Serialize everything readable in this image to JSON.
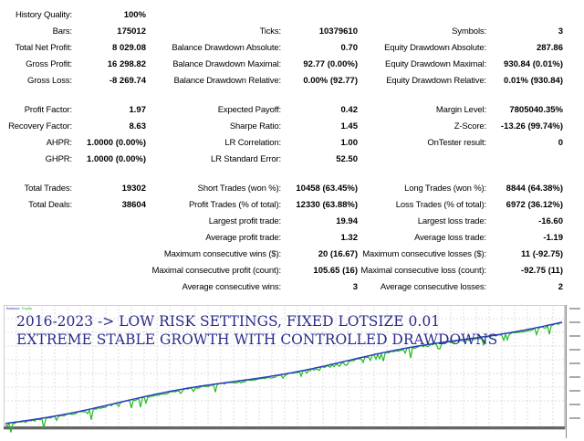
{
  "rows": [
    {
      "y": 17,
      "cells": [
        [
          "History Quality:",
          "100%"
        ],
        null,
        null
      ]
    },
    {
      "y": 35,
      "cells": [
        [
          "Bars:",
          "175012"
        ],
        [
          "Ticks:",
          "10379610"
        ],
        [
          "Symbols:",
          "3"
        ]
      ]
    },
    {
      "y": 53,
      "cells": [
        [
          "Total Net Profit:",
          "8 029.08"
        ],
        [
          "Balance Drawdown Absolute:",
          "0.70"
        ],
        [
          "Equity Drawdown Absolute:",
          "287.86"
        ]
      ]
    },
    {
      "y": 71,
      "cells": [
        [
          "Gross Profit:",
          "16 298.82"
        ],
        [
          "Balance Drawdown Maximal:",
          "92.77 (0.00%)"
        ],
        [
          "Equity Drawdown Maximal:",
          "930.84 (0.01%)"
        ]
      ]
    },
    {
      "y": 89,
      "cells": [
        [
          "Gross Loss:",
          "-8 269.74"
        ],
        [
          "Balance Drawdown Relative:",
          "0.00% (92.77)"
        ],
        [
          "Equity Drawdown Relative:",
          "0.01% (930.84)"
        ]
      ]
    },
    {
      "y": 121,
      "cells": [
        [
          "Profit Factor:",
          "1.97"
        ],
        [
          "Expected Payoff:",
          "0.42"
        ],
        [
          "Margin Level:",
          "7805040.35%"
        ]
      ]
    },
    {
      "y": 139,
      "cells": [
        [
          "Recovery Factor:",
          "8.63"
        ],
        [
          "Sharpe Ratio:",
          "1.45"
        ],
        [
          "Z-Score:",
          "-13.26 (99.74%)"
        ]
      ]
    },
    {
      "y": 157,
      "cells": [
        [
          "AHPR:",
          "1.0000 (0.00%)"
        ],
        [
          "LR Correlation:",
          "1.00"
        ],
        [
          "OnTester result:",
          "0"
        ]
      ]
    },
    {
      "y": 175,
      "cells": [
        [
          "GHPR:",
          "1.0000 (0.00%)"
        ],
        [
          "LR Standard Error:",
          "52.50"
        ],
        null
      ]
    },
    {
      "y": 207,
      "cells": [
        [
          "Total Trades:",
          "19302"
        ],
        [
          "Short Trades (won %):",
          "10458 (63.45%)"
        ],
        [
          "Long Trades (won %):",
          "8844 (64.38%)"
        ]
      ]
    },
    {
      "y": 225,
      "cells": [
        [
          "Total Deals:",
          "38604"
        ],
        [
          "Profit Trades (% of total):",
          "12330 (63.88%)"
        ],
        [
          "Loss Trades (% of total):",
          "6972 (36.12%)"
        ]
      ]
    },
    {
      "y": 243,
      "cells": [
        null,
        [
          "Largest profit trade:",
          "19.94"
        ],
        [
          "Largest loss trade:",
          "-16.60"
        ]
      ]
    },
    {
      "y": 261,
      "cells": [
        null,
        [
          "Average profit trade:",
          "1.32"
        ],
        [
          "Average loss trade:",
          "-1.19"
        ]
      ]
    },
    {
      "y": 279,
      "cells": [
        null,
        [
          "Maximum consecutive wins ($):",
          "20 (16.67)"
        ],
        [
          "Maximum consecutive losses ($):",
          "11 (-92.75)"
        ]
      ]
    },
    {
      "y": 297,
      "cells": [
        null,
        [
          "Maximal consecutive profit (count):",
          "105.65 (16)"
        ],
        [
          "Maximal consecutive loss (count):",
          "-92.75 (11)"
        ]
      ]
    },
    {
      "y": 315,
      "cells": [
        null,
        [
          "Average consecutive wins:",
          "3"
        ],
        [
          "Average consecutive losses:",
          "2"
        ]
      ]
    }
  ],
  "chart": {
    "caption1": "2016-2023 -> LOW RISK SETTINGS, FIXED LOTSIZE 0.01",
    "caption2": "EXTREME STABLE GROWTH WITH CONTROLLED DRAWDOWNS",
    "legend": [
      "Balance",
      "Equity"
    ],
    "balance_color": "#2b3cc0",
    "equity_color": "#22bb22"
  }
}
